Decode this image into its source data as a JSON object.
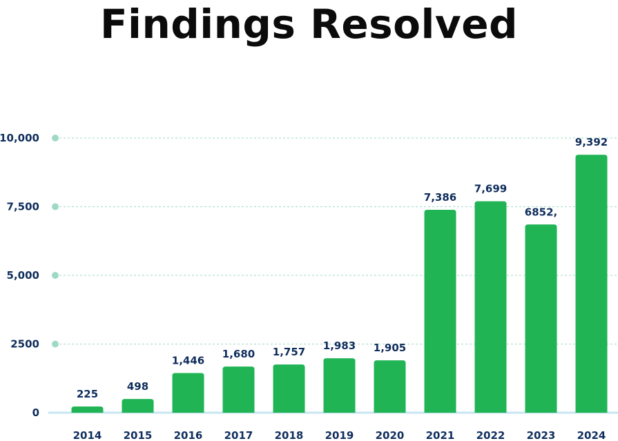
{
  "chart_data": {
    "type": "bar",
    "title": "Findings Resolved",
    "categories": [
      "2014",
      "2015",
      "2016",
      "2017",
      "2018",
      "2019",
      "2020",
      "2021",
      "2022",
      "2023",
      "2024"
    ],
    "values": [
      225,
      498,
      1446,
      1680,
      1757,
      1983,
      1905,
      7386,
      7699,
      6852,
      9392
    ],
    "data_labels": [
      "225",
      "498",
      "1,446",
      "1,680",
      "1,757",
      "1,983",
      "1,905",
      "7,386",
      "7,699",
      "6852,",
      "9,392"
    ],
    "yticks": [
      0,
      2500,
      5000,
      7500,
      10000
    ],
    "ytick_labels": [
      "0",
      "2500",
      "5,000",
      "7,500",
      "10,000"
    ],
    "ylim": [
      0,
      10000
    ],
    "xlabel": "",
    "ylabel": "",
    "grid": true,
    "colors": {
      "bar": "#20b455",
      "grid": "#9fd9c6",
      "baseline": "#c6e6ef",
      "tick_text": "#0f2d5c",
      "title": "#0b0b0b"
    }
  }
}
